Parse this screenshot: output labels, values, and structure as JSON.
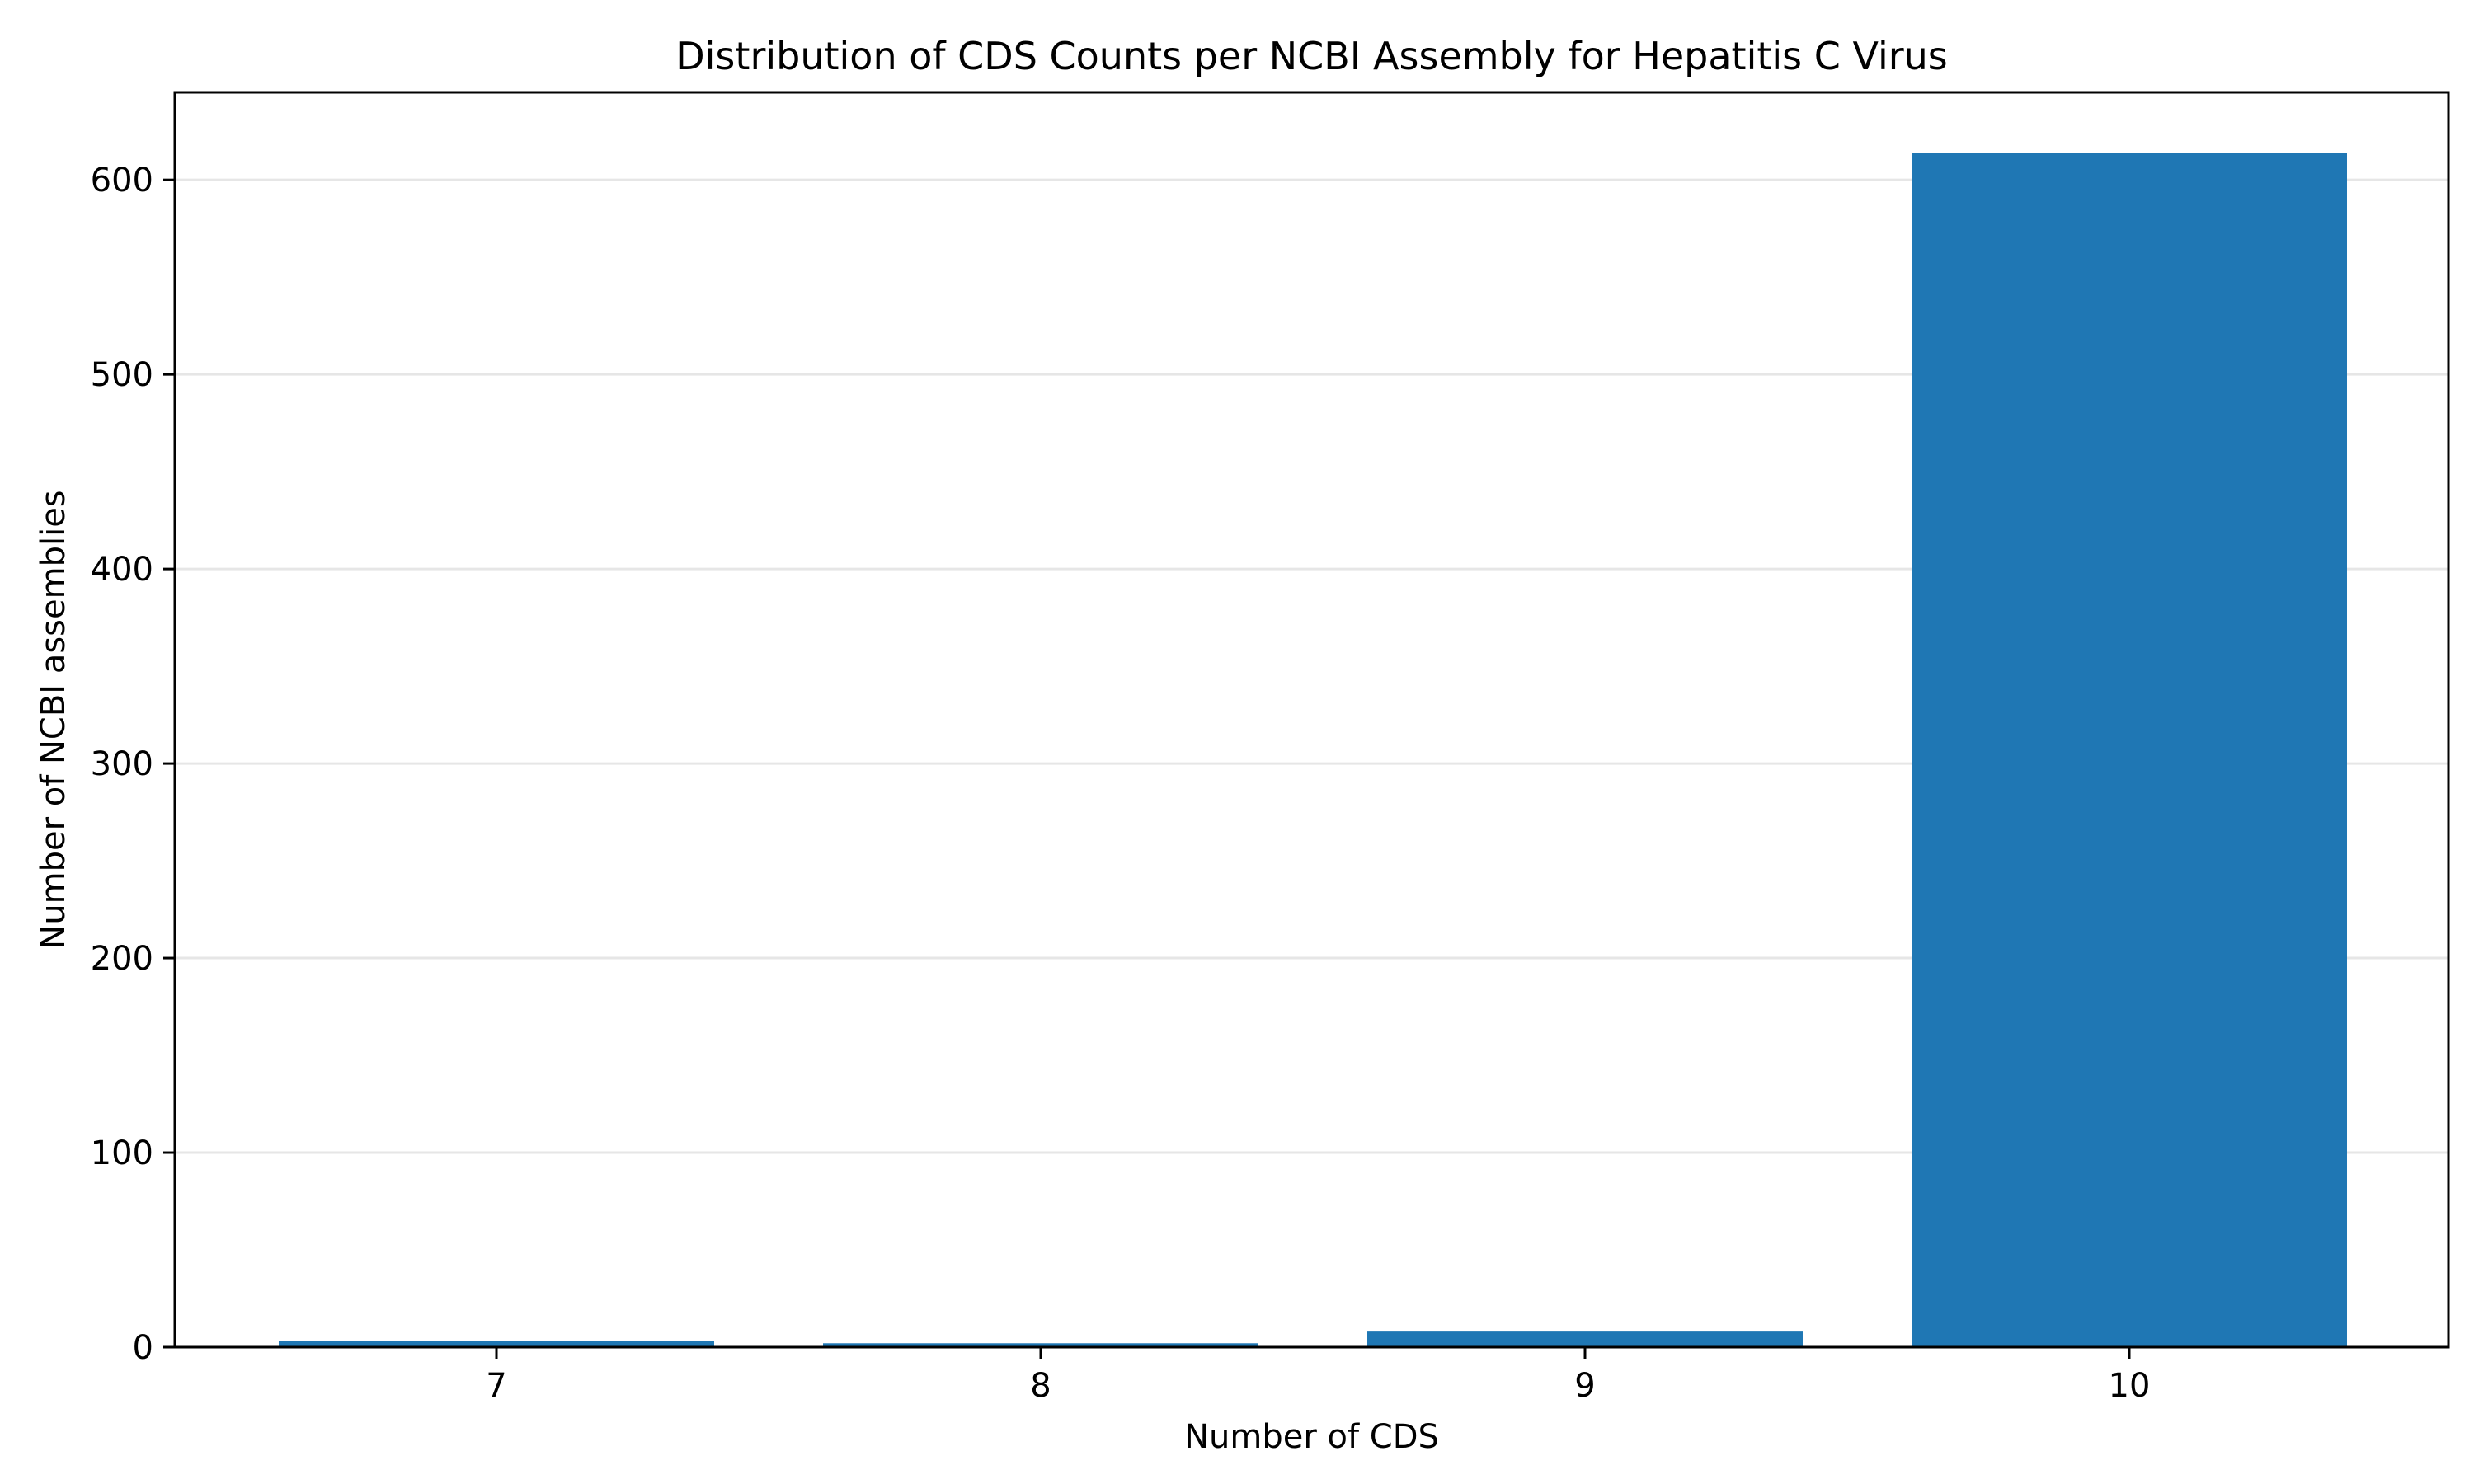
{
  "chart_data": {
    "type": "bar",
    "title": "Distribution of CDS Counts per NCBI Assembly for Hepatitis C Virus",
    "xlabel": "Number of CDS",
    "ylabel": "Number of NCBI assemblies",
    "categories": [
      "7",
      "8",
      "9",
      "10"
    ],
    "values": [
      3,
      2,
      8,
      614
    ],
    "ylim": [
      0,
      645
    ],
    "yticks": [
      0,
      100,
      200,
      300,
      400,
      500,
      600
    ],
    "ytick_labels": [
      "0",
      "100",
      "200",
      "300",
      "400",
      "500",
      "600"
    ],
    "grid": {
      "y": true,
      "x": false
    },
    "legend": "none",
    "colors": {
      "bar": "#1f77b4",
      "grid": "#e6e6e6",
      "axis": "#000000"
    }
  }
}
